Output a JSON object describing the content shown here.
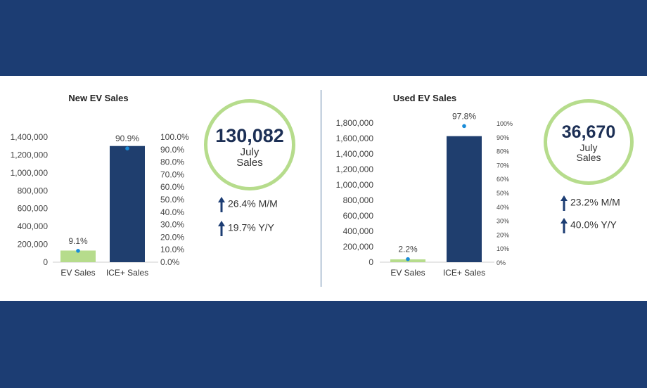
{
  "colors": {
    "navy": "#1c3d73",
    "ev_bar": "#b6dc8c",
    "ice_bar": "#1f3e6e",
    "dot": "#1a8cd8",
    "ring": "#b6dc8c"
  },
  "chart_data": [
    {
      "type": "bar",
      "title": "New EV Sales",
      "categories": [
        "EV Sales",
        "ICE+ Sales"
      ],
      "values": [
        130082,
        1300000
      ],
      "share": [
        9.1,
        90.9
      ],
      "share_labels": [
        "9.1%",
        "90.9%"
      ],
      "ylim": [
        0,
        1400000
      ],
      "y_ticks": [
        "0",
        "200,000",
        "400,000",
        "600,000",
        "800,000",
        "1,000,000",
        "1,200,000",
        "1,400,000"
      ],
      "y2lim": [
        0,
        100
      ],
      "y2_ticks": [
        "0.0%",
        "10.0%",
        "20.0%",
        "30.0%",
        "40.0%",
        "50.0%",
        "60.0%",
        "70.0%",
        "80.0%",
        "90.0%",
        "100.0%"
      ],
      "grid": false
    },
    {
      "type": "bar",
      "title": "Used EV Sales",
      "categories": [
        "EV Sales",
        "ICE+ Sales"
      ],
      "values": [
        36670,
        1630000
      ],
      "share": [
        2.2,
        97.8
      ],
      "share_labels": [
        "2.2%",
        "97.8%"
      ],
      "ylim": [
        0,
        1800000
      ],
      "y_ticks": [
        "0",
        "200,000",
        "400,000",
        "600,000",
        "800,000",
        "1,000,000",
        "1,200,000",
        "1,400,000",
        "1,600,000",
        "1,800,000"
      ],
      "y2lim": [
        0,
        100
      ],
      "y2_ticks": [
        "0%",
        "10%",
        "20%",
        "30%",
        "40%",
        "50%",
        "60%",
        "70%",
        "80%",
        "90%",
        "100%"
      ],
      "grid": false
    }
  ],
  "kpis": [
    {
      "value": "130,082",
      "line1": "July",
      "line2": "Sales",
      "mm": "26.4% M/M",
      "yy": "19.7% Y/Y",
      "icon": "arrow-up-icon"
    },
    {
      "value": "36,670",
      "line1": "July",
      "line2": "Sales",
      "mm": "23.2% M/M",
      "yy": "40.0% Y/Y",
      "icon": "arrow-up-icon"
    }
  ]
}
